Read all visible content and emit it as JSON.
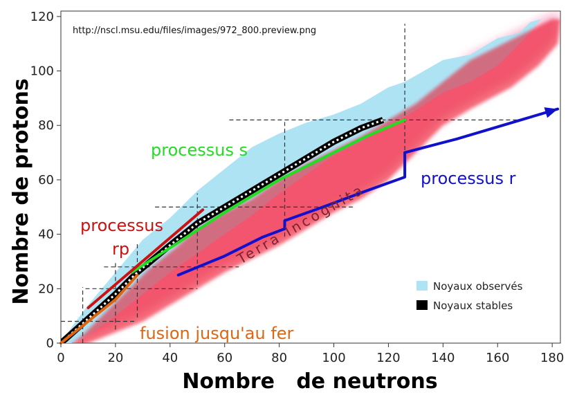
{
  "chart_data": {
    "type": "scatter",
    "xlabel": "Nombre   de neutrons",
    "ylabel": "Nombre de protons",
    "xlim": [
      0,
      183
    ],
    "ylim": [
      0,
      122
    ],
    "xticks": [
      0,
      20,
      40,
      60,
      80,
      100,
      120,
      140,
      160,
      180
    ],
    "yticks": [
      0,
      20,
      40,
      60,
      80,
      100,
      120
    ],
    "source_text": "http://nscl.msu.edu/files/images/972_800.preview.png",
    "region_label": "Terra Incognita",
    "regions": {
      "observed": [
        [
          0,
          0
        ],
        [
          4,
          6
        ],
        [
          10,
          14
        ],
        [
          20,
          26
        ],
        [
          30,
          38
        ],
        [
          40,
          46
        ],
        [
          50,
          56
        ],
        [
          60,
          64
        ],
        [
          70,
          72
        ],
        [
          80,
          77
        ],
        [
          90,
          81
        ],
        [
          100,
          84
        ],
        [
          110,
          88
        ],
        [
          120,
          94
        ],
        [
          126,
          96
        ],
        [
          140,
          104
        ],
        [
          150,
          106
        ],
        [
          160,
          112
        ],
        [
          168,
          114
        ],
        [
          172,
          118
        ],
        [
          176,
          119
        ],
        [
          170,
          112
        ],
        [
          160,
          102
        ],
        [
          150,
          96
        ],
        [
          140,
          92
        ],
        [
          126,
          83
        ],
        [
          120,
          80
        ],
        [
          110,
          74
        ],
        [
          100,
          69
        ],
        [
          90,
          62
        ],
        [
          80,
          55
        ],
        [
          70,
          47
        ],
        [
          60,
          40
        ],
        [
          50,
          33
        ],
        [
          40,
          26
        ],
        [
          30,
          18
        ],
        [
          20,
          10
        ],
        [
          10,
          3
        ],
        [
          4,
          0
        ]
      ],
      "predicted": [
        [
          2,
          0
        ],
        [
          8,
          5
        ],
        [
          16,
          13
        ],
        [
          24,
          21
        ],
        [
          32,
          29
        ],
        [
          42,
          37
        ],
        [
          50,
          44
        ],
        [
          60,
          50
        ],
        [
          70,
          55
        ],
        [
          80,
          62
        ],
        [
          90,
          68
        ],
        [
          100,
          73
        ],
        [
          110,
          78
        ],
        [
          120,
          84
        ],
        [
          130,
          90
        ],
        [
          140,
          98
        ],
        [
          150,
          106
        ],
        [
          160,
          111
        ],
        [
          170,
          116
        ],
        [
          180,
          121
        ],
        [
          183,
          121
        ],
        [
          182,
          112
        ],
        [
          175,
          104
        ],
        [
          165,
          96
        ],
        [
          150,
          88
        ],
        [
          140,
          82
        ],
        [
          130,
          72
        ],
        [
          120,
          62
        ],
        [
          110,
          55
        ],
        [
          100,
          50
        ],
        [
          90,
          44
        ],
        [
          80,
          38
        ],
        [
          70,
          33
        ],
        [
          60,
          28
        ],
        [
          50,
          22
        ],
        [
          40,
          16
        ],
        [
          30,
          10
        ],
        [
          20,
          6
        ],
        [
          10,
          2
        ],
        [
          5,
          0
        ]
      ]
    },
    "stable_line": [
      [
        0,
        0
      ],
      [
        10,
        9
      ],
      [
        20,
        18
      ],
      [
        28,
        26
      ],
      [
        40,
        36
      ],
      [
        50,
        44
      ],
      [
        60,
        50
      ],
      [
        70,
        56
      ],
      [
        80,
        62
      ],
      [
        90,
        68
      ],
      [
        100,
        74
      ],
      [
        110,
        79
      ],
      [
        118,
        82
      ]
    ],
    "processes": [
      {
        "name": "processus s",
        "color": "#22dd22",
        "points": [
          [
            26,
            26
          ],
          [
            40,
            35
          ],
          [
            60,
            48
          ],
          [
            80,
            60
          ],
          [
            100,
            70
          ],
          [
            112,
            76
          ],
          [
            126,
            82
          ]
        ]
      },
      {
        "name": "processus r",
        "color": "#1111cc",
        "points": [
          [
            43,
            25
          ],
          [
            60,
            32
          ],
          [
            74,
            39
          ],
          [
            82,
            42
          ],
          [
            82,
            45
          ],
          [
            96,
            50
          ],
          [
            112,
            56
          ],
          [
            126,
            61
          ],
          [
            126,
            70
          ],
          [
            145,
            75
          ],
          [
            182,
            86
          ]
        ]
      },
      {
        "name": "processus rp",
        "color": "#cc1111",
        "points": [
          [
            10,
            13
          ],
          [
            52,
            49
          ]
        ]
      },
      {
        "name": "fusion jusqu'au fer",
        "color": "#dd6611",
        "points": [
          [
            0,
            0
          ],
          [
            10,
            8
          ],
          [
            20,
            16
          ],
          [
            28,
            25
          ]
        ]
      }
    ],
    "process_labels": [
      {
        "text": "processus s",
        "color": "#22dd22"
      },
      {
        "text": "processus r",
        "color": "#1111cc"
      },
      {
        "text": "processus",
        "color": "#cc1111"
      },
      {
        "text": "rp",
        "color": "#cc1111"
      },
      {
        "text": "fusion jusqu'au fer",
        "color": "#dd6611"
      }
    ],
    "magic_numbers": [
      8,
      20,
      28,
      50,
      82,
      126
    ],
    "legend": [
      {
        "label": "Noyaux observés",
        "color": "#aee3f4"
      },
      {
        "label": "Noyaux stables",
        "color": "#000000"
      }
    ],
    "legend_position": "bottom-right",
    "colors": {
      "predicted_core": "#ee1122",
      "predicted_halo": "#f6a0c0",
      "observed": "#aee3f4"
    }
  }
}
